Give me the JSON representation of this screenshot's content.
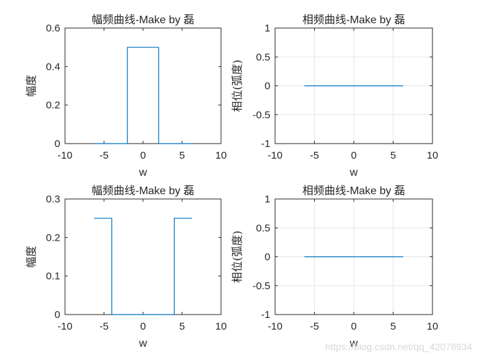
{
  "chart_data": [
    {
      "type": "line",
      "title": "幅频曲线-Make by 磊",
      "xlabel": "w",
      "ylabel": "幅度",
      "xlim": [
        -10,
        10
      ],
      "ylim": [
        0,
        0.6
      ],
      "xticks": [
        -10,
        -5,
        0,
        5,
        10
      ],
      "yticks": [
        0,
        0.2,
        0.4,
        0.6
      ],
      "xtick_labels": [
        "-10",
        "-5",
        "0",
        "5",
        "10"
      ],
      "ytick_labels": [
        "0",
        "0.2",
        "0.4",
        "0.6"
      ],
      "grid": false,
      "series": [
        {
          "x": [
            -6.28,
            -2,
            -2,
            2,
            2,
            6.28
          ],
          "y": [
            0,
            0,
            0.5,
            0.5,
            0,
            0
          ]
        }
      ]
    },
    {
      "type": "line",
      "title": "相频曲线-Make by 磊",
      "xlabel": "w",
      "ylabel": "相位(弧度)",
      "xlim": [
        -10,
        10
      ],
      "ylim": [
        -1,
        1
      ],
      "xticks": [
        -10,
        -5,
        0,
        5,
        10
      ],
      "yticks": [
        -1,
        -0.5,
        0,
        0.5,
        1
      ],
      "xtick_labels": [
        "-10",
        "-5",
        "0",
        "5",
        "10"
      ],
      "ytick_labels": [
        "-1",
        "-0.5",
        "0",
        "0.5",
        "1"
      ],
      "grid": true,
      "series": [
        {
          "x": [
            -6.28,
            6.28
          ],
          "y": [
            0,
            0
          ]
        }
      ]
    },
    {
      "type": "line",
      "title": "幅频曲线-Make by 磊",
      "xlabel": "w",
      "ylabel": "幅度",
      "xlim": [
        -10,
        10
      ],
      "ylim": [
        0,
        0.3
      ],
      "xticks": [
        -10,
        -5,
        0,
        5,
        10
      ],
      "yticks": [
        0,
        0.1,
        0.2,
        0.3
      ],
      "xtick_labels": [
        "-10",
        "-5",
        "0",
        "5",
        "10"
      ],
      "ytick_labels": [
        "0",
        "0.1",
        "0.2",
        "0.3"
      ],
      "grid": false,
      "series": [
        {
          "x": [
            -6.28,
            -4,
            -4,
            4,
            4,
            6.28
          ],
          "y": [
            0.25,
            0.25,
            0,
            0,
            0.25,
            0.25
          ]
        }
      ]
    },
    {
      "type": "line",
      "title": "相频曲线-Make by 磊",
      "xlabel": "w",
      "ylabel": "相位(弧度)",
      "xlim": [
        -10,
        10
      ],
      "ylim": [
        -1,
        1
      ],
      "xticks": [
        -10,
        -5,
        0,
        5,
        10
      ],
      "yticks": [
        -1,
        -0.5,
        0,
        0.5,
        1
      ],
      "xtick_labels": [
        "-10",
        "-5",
        "0",
        "5",
        "10"
      ],
      "ytick_labels": [
        "-1",
        "-0.5",
        "0",
        "0.5",
        "1"
      ],
      "grid": true,
      "series": [
        {
          "x": [
            -6.28,
            6.28
          ],
          "y": [
            0,
            0
          ]
        }
      ]
    }
  ],
  "line_color": "#0072bd",
  "watermark": "https://blog.csdn.net/qq_42078934"
}
